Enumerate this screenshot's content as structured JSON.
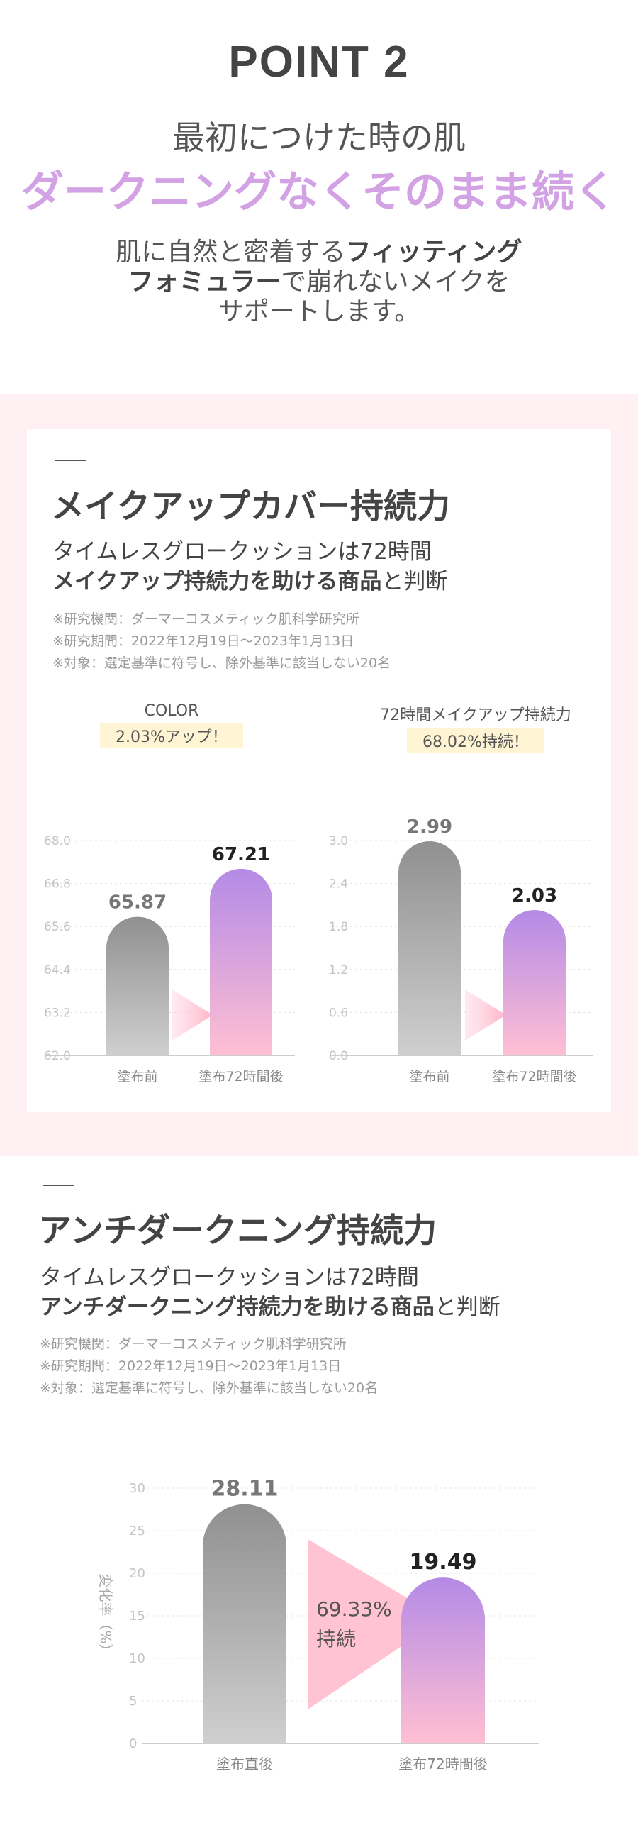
{
  "hero": {
    "point": "POINT 2",
    "title_line1": "最初につけた時の肌",
    "title_line2": "ダークニングなくそのまま続く",
    "lead_line1_plain": "肌に自然と密着する",
    "lead_line1_bold": "フィッティング",
    "lead_line2_bold": "フォミュラー",
    "lead_line2_plain": "で崩れないメイクを",
    "lead_line3": "サポートします。"
  },
  "section1": {
    "title": "メイクアップカバー持続力",
    "sub_line1": "タイムレスグロークッションは72時間",
    "sub_line2_bold": "メイクアップ持続力を助ける商品",
    "sub_line2_plain": "と判断",
    "notes": [
      "※研究機関：ダーマーコスメティック肌科学研究所",
      "※研究期間：2022年12月19日～2023年1月13日",
      "※対象：選定基準に符号し、除外基準に該当しない20名"
    ]
  },
  "section2": {
    "title": "アンチダークニング持続力",
    "sub_line1": "タイムレスグロークッションは72時間",
    "sub_line2_bold": "アンチダークニング持続力を助ける商品",
    "sub_line2_plain": "と判断",
    "notes": [
      "※研究機関：ダーマーコスメティック肌科学研究所",
      "※研究期間：2022年12月19日～2023年1月13日",
      "※対象：選定基準に符号し、除外基準に該当しない20名"
    ]
  },
  "chart_data": [
    {
      "type": "bar",
      "title": "COLOR",
      "badge": "2.03%アップ！",
      "categories": [
        "塗布前",
        "塗布72時間後"
      ],
      "values": [
        65.87,
        67.21
      ],
      "value_labels": [
        "65.87",
        "67.21"
      ],
      "yticks": [
        "68.0",
        "66.8",
        "65.6",
        "64.4",
        "63.2",
        "62.0"
      ],
      "ylim": [
        62.0,
        68.0
      ]
    },
    {
      "type": "bar",
      "title": "72時間メイクアップ持続力",
      "badge": "68.02%持続！",
      "categories": [
        "塗布前",
        "塗布72時間後"
      ],
      "values": [
        2.99,
        2.03
      ],
      "value_labels": [
        "2.99",
        "2.03"
      ],
      "yticks": [
        "3.0",
        "2.4",
        "1.8",
        "1.2",
        "0.6",
        "0.0"
      ],
      "ylim": [
        0,
        3.0
      ]
    },
    {
      "type": "bar",
      "ylabel": "変化率（%）",
      "categories": [
        "塗布直後",
        "塗布72時間後"
      ],
      "values": [
        28.11,
        19.49
      ],
      "value_labels": [
        "28.11",
        "19.49"
      ],
      "yticks": [
        "30",
        "25",
        "20",
        "15",
        "10",
        "5",
        "0"
      ],
      "ylim": [
        0,
        30
      ],
      "annotation_line1": "69.33%",
      "annotation_line2": "持続"
    }
  ],
  "colors": {
    "accent_purple": "#b48ae6",
    "accent_pink": "#ffbfd3",
    "gray_bar_top": "#909090",
    "gray_bar_bottom": "#cfcfcf",
    "section_bg": "#fff0f3",
    "badge_bg": "#fff5d4"
  }
}
